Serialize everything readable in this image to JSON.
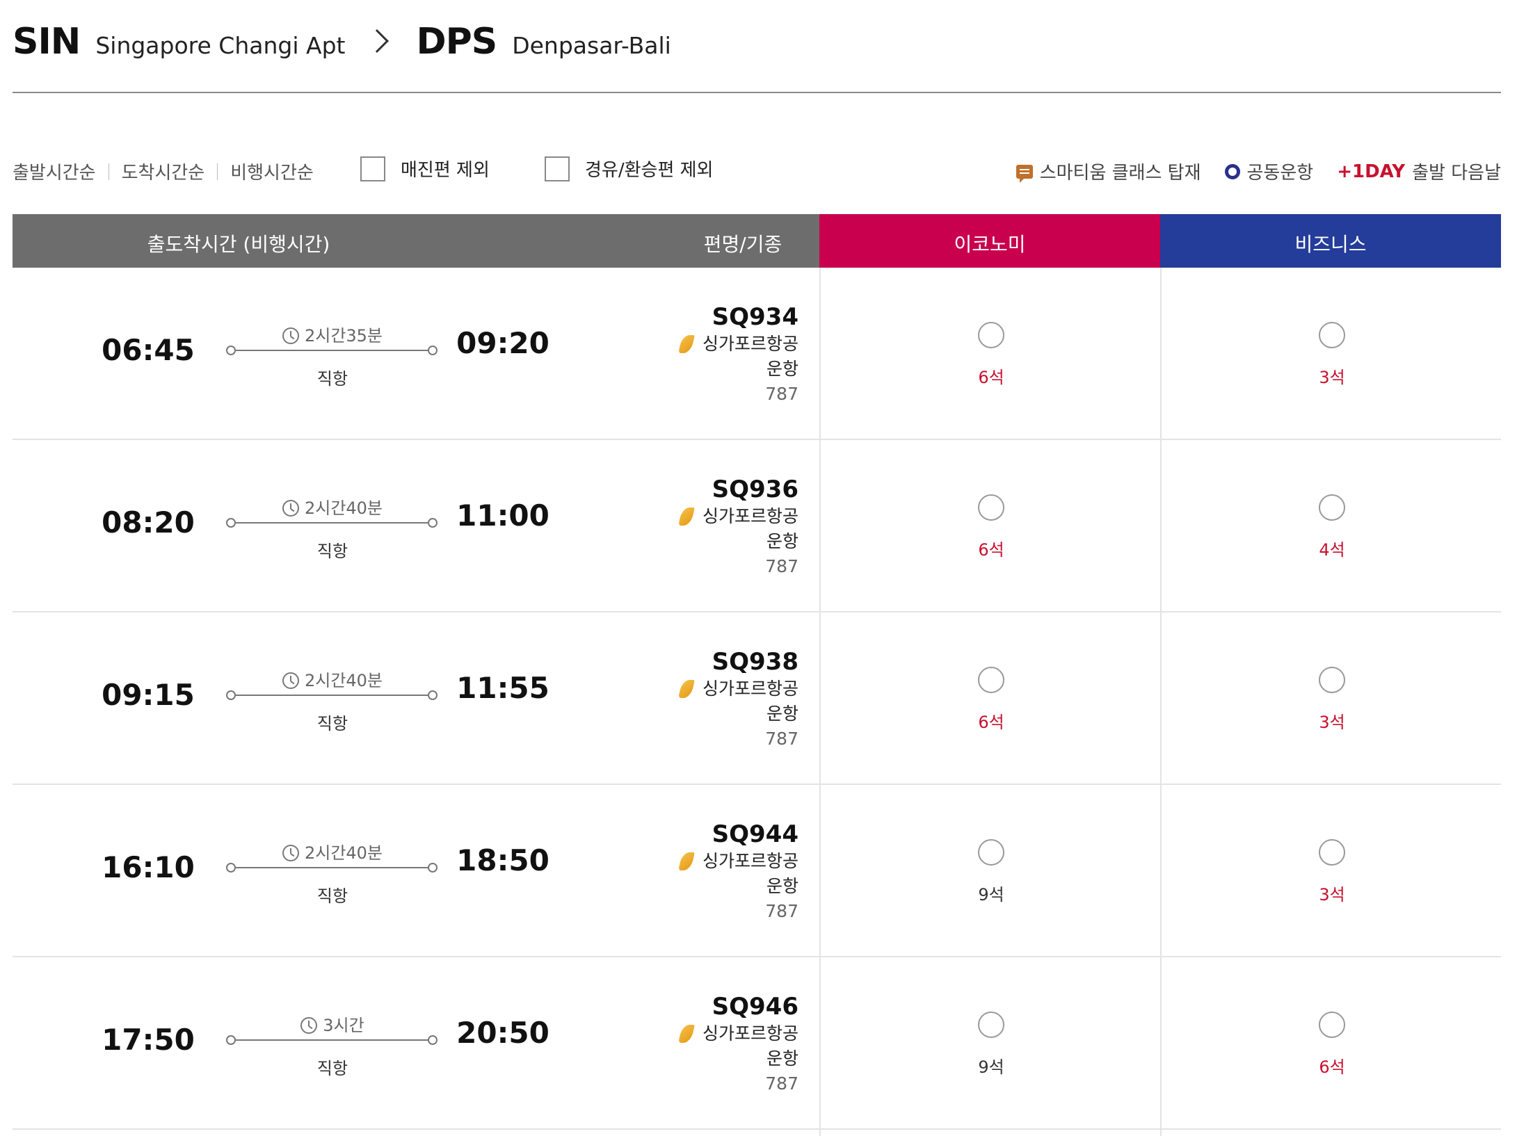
{
  "route": {
    "origin_code": "SIN",
    "origin_name": "Singapore Changi Apt",
    "dest_code": "DPS",
    "dest_name": "Denpasar-Bali"
  },
  "sort_options": [
    "출발시간순",
    "도착시간순",
    "비행시간순"
  ],
  "filters": {
    "exclude_soldout": "매진편 제외",
    "exclude_transfer": "경유/환승편 제외"
  },
  "legend": {
    "smartium": "스마티움 클래스 탑재",
    "codeshare": "공동운항",
    "plus_day": "+1DAY",
    "plus_day_desc": "출발 다음날"
  },
  "table": {
    "col_time": "출도착시간 (비행시간)",
    "col_flight": "편명/기종",
    "col_economy": "이코노미",
    "col_business": "비즈니스"
  },
  "colors": {
    "header_gray": "#6d6d6d",
    "economy": "#c8004e",
    "business": "#243c9a",
    "seat_low": "#c8102e"
  },
  "flights": [
    {
      "dep": "06:45",
      "arr": "09:20",
      "duration": "2시간35분",
      "type": "직항",
      "flight_no": "SQ934",
      "airline": "싱가포르항공",
      "operated": "운항",
      "aircraft": "787",
      "economy": "6석",
      "business": "3석",
      "economy_low": true,
      "business_low": true
    },
    {
      "dep": "08:20",
      "arr": "11:00",
      "duration": "2시간40분",
      "type": "직항",
      "flight_no": "SQ936",
      "airline": "싱가포르항공",
      "operated": "운항",
      "aircraft": "787",
      "economy": "6석",
      "business": "4석",
      "economy_low": true,
      "business_low": true
    },
    {
      "dep": "09:15",
      "arr": "11:55",
      "duration": "2시간40분",
      "type": "직항",
      "flight_no": "SQ938",
      "airline": "싱가포르항공",
      "operated": "운항",
      "aircraft": "787",
      "economy": "6석",
      "business": "3석",
      "economy_low": true,
      "business_low": true
    },
    {
      "dep": "16:10",
      "arr": "18:50",
      "duration": "2시간40분",
      "type": "직항",
      "flight_no": "SQ944",
      "airline": "싱가포르항공",
      "operated": "운항",
      "aircraft": "787",
      "economy": "9석",
      "business": "3석",
      "economy_low": false,
      "business_low": true
    },
    {
      "dep": "17:50",
      "arr": "20:50",
      "duration": "3시간",
      "type": "직항",
      "flight_no": "SQ946",
      "airline": "싱가포르항공",
      "operated": "운항",
      "aircraft": "787",
      "economy": "9석",
      "business": "6석",
      "economy_low": false,
      "business_low": true
    }
  ]
}
